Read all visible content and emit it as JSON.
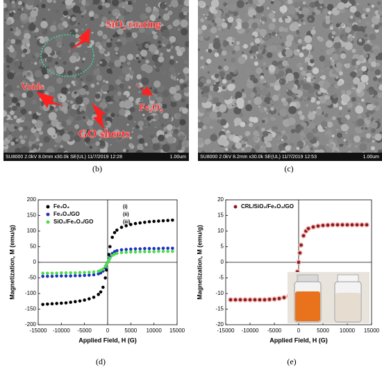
{
  "images": [
    {
      "panel_label": "(b)",
      "annotations": [
        "SiO₂ coating",
        "Voids",
        "Fe₃O₄",
        "GO sheets"
      ],
      "footer": "SU8000 2.0kV 8.0mm x30.0k SE(UL) 11/7/2019 12:28",
      "scale": "1.00um"
    },
    {
      "panel_label": "(c)",
      "footer": "SU8000 2.0kV 8.2mm x30.0k SE(UL) 11/7/2019 12:53",
      "scale": "1.00um"
    }
  ],
  "chart_data": [
    {
      "type": "scatter",
      "panel_label": "(d)",
      "xlabel": "Applied Field, H (G)",
      "ylabel": "Magnetization, M (emu/g)",
      "x": [
        -14000,
        -13000,
        -12000,
        -11000,
        -10000,
        -9000,
        -8000,
        -7000,
        -6000,
        -5000,
        -4000,
        -3000,
        -2000,
        -1500,
        -1000,
        -500,
        -250,
        0,
        250,
        500,
        1000,
        1500,
        2000,
        3000,
        4000,
        5000,
        6000,
        7000,
        8000,
        9000,
        10000,
        11000,
        12000,
        13000,
        14000
      ],
      "series": [
        {
          "name": "Fe₃O₄",
          "tag": "(i)",
          "color": "#000000",
          "values": [
            -135,
            -134,
            -133,
            -132,
            -131,
            -130,
            -128,
            -126,
            -124,
            -121,
            -117,
            -112,
            -103,
            -95,
            -80,
            -50,
            -25,
            0,
            25,
            50,
            80,
            95,
            103,
            112,
            117,
            121,
            124,
            126,
            128,
            130,
            131,
            132,
            133,
            134,
            135
          ]
        },
        {
          "name": "Fe₃O₄/GO",
          "tag": "(ii)",
          "color": "#1f2fc0",
          "values": [
            -45,
            -45,
            -45,
            -44,
            -44,
            -44,
            -44,
            -43,
            -43,
            -42,
            -41,
            -40,
            -37,
            -34,
            -28,
            -17,
            -9,
            0,
            9,
            17,
            28,
            34,
            37,
            40,
            41,
            42,
            43,
            43,
            44,
            44,
            44,
            44,
            45,
            45,
            45
          ]
        },
        {
          "name": "SiO₂/Fe₃O₄/GO",
          "tag": "(iii)",
          "color": "#4cdc4c",
          "values": [
            -35,
            -35,
            -35,
            -35,
            -34,
            -34,
            -34,
            -34,
            -33,
            -33,
            -32,
            -31,
            -29,
            -26,
            -22,
            -13,
            -7,
            0,
            7,
            13,
            22,
            26,
            29,
            31,
            32,
            33,
            33,
            34,
            34,
            34,
            34,
            35,
            35,
            35,
            35
          ]
        }
      ],
      "xlim": [
        -15000,
        15000
      ],
      "xticks": [
        -15000,
        -10000,
        -5000,
        0,
        5000,
        10000,
        15000
      ],
      "ylim": [
        -200,
        200
      ],
      "yticks": [
        -200,
        -150,
        -100,
        -50,
        0,
        50,
        100,
        150,
        200
      ],
      "legend": "upper left"
    },
    {
      "type": "scatter",
      "panel_label": "(e)",
      "xlabel": "Applied Field, H (G)",
      "ylabel": "Magnetization, M (emu/g)",
      "x": [
        -14000,
        -13000,
        -12000,
        -11000,
        -10000,
        -9000,
        -8000,
        -7000,
        -6000,
        -5000,
        -4000,
        -3000,
        -2000,
        -1500,
        -1000,
        -500,
        -250,
        0,
        250,
        500,
        1000,
        1500,
        2000,
        3000,
        4000,
        5000,
        6000,
        7000,
        8000,
        9000,
        10000,
        11000,
        12000,
        13000,
        14000
      ],
      "series": [
        {
          "name": "CRL/SiO₂/Fe₃O₄/GO",
          "color": "#8b1a1a",
          "halo": "#f2b8b8",
          "values": [
            -12,
            -12,
            -12,
            -12,
            -12,
            -12,
            -12,
            -12,
            -11.9,
            -11.8,
            -11.6,
            -11.3,
            -10.8,
            -10,
            -8.5,
            -5.5,
            -3,
            0,
            3,
            5.5,
            8.5,
            10,
            10.8,
            11.3,
            11.6,
            11.8,
            11.9,
            12,
            12,
            12,
            12,
            12,
            12,
            12,
            12
          ]
        }
      ],
      "xlim": [
        -15000,
        15000
      ],
      "xticks": [
        -15000,
        -10000,
        -5000,
        0,
        5000,
        10000,
        15000
      ],
      "ylim": [
        -20,
        20
      ],
      "yticks": [
        -20,
        -15,
        -10,
        -5,
        0,
        5,
        10,
        15,
        20
      ],
      "legend": "upper left"
    }
  ]
}
